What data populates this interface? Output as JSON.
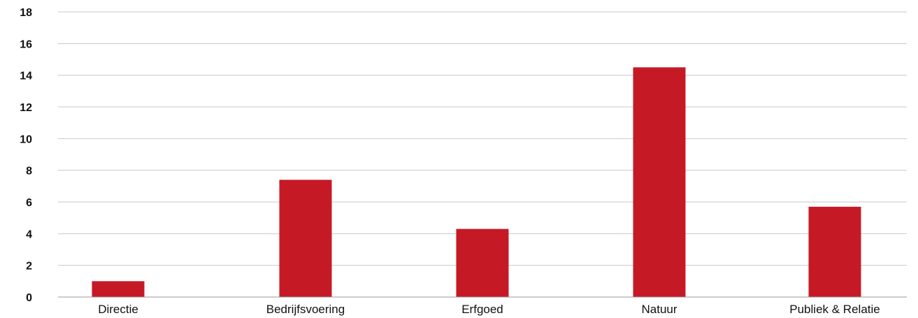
{
  "chart_data": {
    "type": "bar",
    "categories": [
      "Directie",
      "Bedrijfsvoering",
      "Erfgoed",
      "Natuur",
      "Publiek & Relatie"
    ],
    "values": [
      1.0,
      7.4,
      4.3,
      14.5,
      5.7
    ],
    "ylim": [
      0,
      18
    ],
    "yticks": [
      0,
      2,
      4,
      6,
      8,
      10,
      12,
      14,
      16,
      18
    ],
    "grid": true,
    "legend": "none",
    "bar_color": "#c51a26"
  }
}
